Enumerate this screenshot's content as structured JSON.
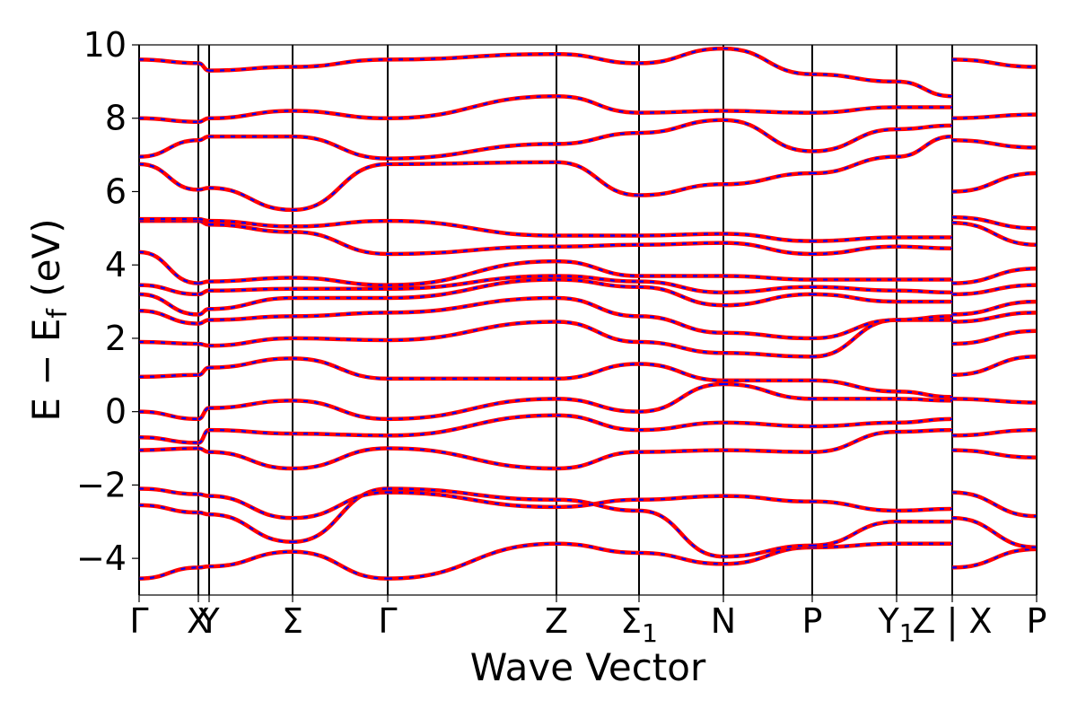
{
  "chart_data": {
    "type": "line",
    "xlabel": "Wave Vector",
    "ylabel": "E − E",
    "ylabel_subscript": "f",
    "ylabel_unit": "(eV)",
    "ylim": [
      -5,
      10
    ],
    "yticks": [
      {
        "value": -4,
        "label": "−4"
      },
      {
        "value": -2,
        "label": "−2"
      },
      {
        "value": 0,
        "label": "0"
      },
      {
        "value": 2,
        "label": "2"
      },
      {
        "value": 4,
        "label": "4"
      },
      {
        "value": 6,
        "label": "6"
      },
      {
        "value": 8,
        "label": "8"
      },
      {
        "value": 10,
        "label": "10"
      }
    ],
    "xlim": [
      0,
      1
    ],
    "high_symmetry_points": [
      {
        "label": "Γ",
        "x": 0.0
      },
      {
        "label": "X",
        "x": 0.066
      },
      {
        "label": "Y",
        "x": 0.078
      },
      {
        "label": "Σ",
        "x": 0.171
      },
      {
        "label": "Γ",
        "x": 0.277
      },
      {
        "label": "Z",
        "x": 0.465
      },
      {
        "label": "Σ",
        "sub": "1",
        "x": 0.557
      },
      {
        "label": "N",
        "x": 0.651
      },
      {
        "label": "P",
        "x": 0.75
      },
      {
        "label": "Y",
        "sub": "1",
        "x": 0.844
      },
      {
        "label": "Z | X",
        "x": 0.906
      },
      {
        "label": "P",
        "x": 1.0
      }
    ],
    "grid": false,
    "line_style": {
      "base_color": "#ff0000",
      "overlay_color": "#0000ff",
      "overlay_dashed": true
    },
    "bands": [
      {
        "name": "band-1",
        "points": [
          [
            0,
            -4.55
          ],
          [
            0.066,
            -4.25
          ],
          [
            0.078,
            -4.22
          ],
          [
            0.171,
            -3.82
          ],
          [
            0.277,
            -4.55
          ],
          [
            0.465,
            -3.6
          ],
          [
            0.557,
            -3.85
          ],
          [
            0.651,
            -4.15
          ],
          [
            0.75,
            -3.7
          ],
          [
            0.844,
            -3.6
          ],
          [
            0.906,
            -3.6
          ],
          [
            0.906,
            -4.25
          ],
          [
            1.0,
            -3.75
          ]
        ]
      },
      {
        "name": "band-2",
        "points": [
          [
            0,
            -2.55
          ],
          [
            0.066,
            -2.75
          ],
          [
            0.078,
            -2.8
          ],
          [
            0.171,
            -3.55
          ],
          [
            0.277,
            -2.1
          ],
          [
            0.465,
            -2.4
          ],
          [
            0.557,
            -2.7
          ],
          [
            0.651,
            -3.95
          ],
          [
            0.75,
            -3.65
          ],
          [
            0.844,
            -3.0
          ],
          [
            0.906,
            -3.0
          ],
          [
            0.906,
            -2.9
          ],
          [
            1.0,
            -3.7
          ]
        ]
      },
      {
        "name": "band-3",
        "points": [
          [
            0,
            -2.1
          ],
          [
            0.066,
            -2.25
          ],
          [
            0.078,
            -2.3
          ],
          [
            0.171,
            -2.9
          ],
          [
            0.277,
            -2.2
          ],
          [
            0.465,
            -2.6
          ],
          [
            0.557,
            -2.4
          ],
          [
            0.651,
            -2.3
          ],
          [
            0.75,
            -2.45
          ],
          [
            0.844,
            -2.7
          ],
          [
            0.906,
            -2.65
          ],
          [
            0.906,
            -2.2
          ],
          [
            1.0,
            -2.85
          ]
        ]
      },
      {
        "name": "band-4",
        "points": [
          [
            0,
            -1.05
          ],
          [
            0.066,
            -1.0
          ],
          [
            0.078,
            -1.1
          ],
          [
            0.171,
            -1.55
          ],
          [
            0.277,
            -1.0
          ],
          [
            0.465,
            -1.55
          ],
          [
            0.557,
            -1.1
          ],
          [
            0.651,
            -1.05
          ],
          [
            0.75,
            -1.1
          ],
          [
            0.844,
            -0.55
          ],
          [
            0.906,
            -0.5
          ],
          [
            0.906,
            -1.05
          ],
          [
            1.0,
            -1.25
          ]
        ]
      },
      {
        "name": "band-5",
        "points": [
          [
            0,
            -0.7
          ],
          [
            0.066,
            -0.85
          ],
          [
            0.078,
            -0.5
          ],
          [
            0.171,
            -0.6
          ],
          [
            0.277,
            -0.65
          ],
          [
            0.465,
            -0.1
          ],
          [
            0.557,
            -0.5
          ],
          [
            0.651,
            -0.3
          ],
          [
            0.75,
            -0.4
          ],
          [
            0.844,
            -0.3
          ],
          [
            0.906,
            -0.2
          ],
          [
            0.906,
            -0.65
          ],
          [
            1.0,
            -0.5
          ]
        ]
      },
      {
        "name": "band-6",
        "points": [
          [
            0,
            0.0
          ],
          [
            0.066,
            -0.2
          ],
          [
            0.078,
            0.1
          ],
          [
            0.171,
            0.3
          ],
          [
            0.277,
            -0.2
          ],
          [
            0.465,
            0.35
          ],
          [
            0.557,
            0.0
          ],
          [
            0.651,
            0.75
          ],
          [
            0.75,
            0.35
          ],
          [
            0.844,
            0.35
          ],
          [
            0.906,
            0.3
          ],
          [
            0.906,
            0.35
          ],
          [
            1.0,
            0.25
          ]
        ]
      },
      {
        "name": "band-7",
        "points": [
          [
            0,
            0.95
          ],
          [
            0.066,
            1.0
          ],
          [
            0.078,
            1.2
          ],
          [
            0.171,
            1.45
          ],
          [
            0.277,
            0.9
          ],
          [
            0.465,
            0.9
          ],
          [
            0.557,
            1.3
          ],
          [
            0.651,
            0.85
          ],
          [
            0.75,
            0.85
          ],
          [
            0.844,
            0.55
          ],
          [
            0.906,
            0.4
          ],
          [
            0.906,
            1.0
          ],
          [
            1.0,
            1.5
          ]
        ]
      },
      {
        "name": "band-8",
        "points": [
          [
            0,
            1.9
          ],
          [
            0.066,
            1.85
          ],
          [
            0.078,
            1.8
          ],
          [
            0.171,
            2.0
          ],
          [
            0.277,
            1.95
          ],
          [
            0.465,
            2.45
          ],
          [
            0.557,
            1.9
          ],
          [
            0.651,
            1.6
          ],
          [
            0.75,
            1.5
          ],
          [
            0.844,
            2.5
          ],
          [
            0.906,
            2.5
          ],
          [
            0.906,
            1.85
          ],
          [
            1.0,
            2.2
          ]
        ]
      },
      {
        "name": "band-9",
        "points": [
          [
            0,
            2.75
          ],
          [
            0.066,
            2.4
          ],
          [
            0.078,
            2.5
          ],
          [
            0.171,
            2.6
          ],
          [
            0.277,
            2.7
          ],
          [
            0.465,
            3.1
          ],
          [
            0.557,
            2.6
          ],
          [
            0.651,
            2.15
          ],
          [
            0.75,
            2.0
          ],
          [
            0.844,
            2.5
          ],
          [
            0.906,
            2.6
          ],
          [
            0.906,
            2.45
          ],
          [
            1.0,
            2.7
          ]
        ]
      },
      {
        "name": "band-10",
        "points": [
          [
            0,
            3.2
          ],
          [
            0.066,
            2.65
          ],
          [
            0.078,
            2.8
          ],
          [
            0.171,
            3.1
          ],
          [
            0.277,
            3.1
          ],
          [
            0.465,
            3.6
          ],
          [
            0.557,
            3.4
          ],
          [
            0.651,
            2.9
          ],
          [
            0.75,
            3.2
          ],
          [
            0.844,
            3.0
          ],
          [
            0.906,
            3.0
          ],
          [
            0.906,
            2.65
          ],
          [
            1.0,
            3.0
          ]
        ]
      },
      {
        "name": "band-11",
        "points": [
          [
            0,
            3.45
          ],
          [
            0.066,
            3.2
          ],
          [
            0.078,
            3.3
          ],
          [
            0.171,
            3.35
          ],
          [
            0.277,
            3.35
          ],
          [
            0.465,
            3.7
          ],
          [
            0.557,
            3.55
          ],
          [
            0.651,
            3.25
          ],
          [
            0.75,
            3.4
          ],
          [
            0.844,
            3.3
          ],
          [
            0.906,
            3.25
          ],
          [
            0.906,
            3.2
          ],
          [
            1.0,
            3.45
          ]
        ]
      },
      {
        "name": "band-12",
        "points": [
          [
            0,
            4.35
          ],
          [
            0.066,
            3.5
          ],
          [
            0.078,
            3.55
          ],
          [
            0.171,
            3.65
          ],
          [
            0.277,
            3.45
          ],
          [
            0.465,
            4.1
          ],
          [
            0.557,
            3.7
          ],
          [
            0.651,
            3.7
          ],
          [
            0.75,
            3.6
          ],
          [
            0.844,
            3.6
          ],
          [
            0.906,
            3.6
          ],
          [
            0.906,
            3.5
          ],
          [
            1.0,
            3.9
          ]
        ]
      },
      {
        "name": "band-13",
        "points": [
          [
            0,
            5.2
          ],
          [
            0.066,
            5.2
          ],
          [
            0.078,
            5.1
          ],
          [
            0.171,
            4.9
          ],
          [
            0.277,
            4.3
          ],
          [
            0.465,
            4.5
          ],
          [
            0.557,
            4.55
          ],
          [
            0.651,
            4.6
          ],
          [
            0.75,
            4.3
          ],
          [
            0.844,
            4.5
          ],
          [
            0.906,
            4.45
          ],
          [
            0.906,
            5.15
          ],
          [
            1.0,
            4.55
          ]
        ]
      },
      {
        "name": "band-14",
        "points": [
          [
            0,
            5.25
          ],
          [
            0.066,
            5.25
          ],
          [
            0.078,
            5.2
          ],
          [
            0.171,
            5.05
          ],
          [
            0.277,
            5.2
          ],
          [
            0.465,
            4.8
          ],
          [
            0.557,
            4.8
          ],
          [
            0.651,
            4.85
          ],
          [
            0.75,
            4.65
          ],
          [
            0.844,
            4.75
          ],
          [
            0.906,
            4.75
          ],
          [
            0.906,
            5.3
          ],
          [
            1.0,
            5.0
          ]
        ]
      },
      {
        "name": "band-15",
        "points": [
          [
            0,
            6.75
          ],
          [
            0.066,
            6.05
          ],
          [
            0.078,
            6.1
          ],
          [
            0.171,
            5.5
          ],
          [
            0.277,
            6.75
          ],
          [
            0.465,
            6.8
          ],
          [
            0.557,
            5.9
          ],
          [
            0.651,
            6.2
          ],
          [
            0.75,
            6.5
          ],
          [
            0.844,
            6.95
          ],
          [
            0.906,
            7.5
          ],
          [
            0.906,
            6.0
          ],
          [
            1.0,
            6.5
          ]
        ]
      },
      {
        "name": "band-16",
        "points": [
          [
            0,
            6.95
          ],
          [
            0.066,
            7.4
          ],
          [
            0.078,
            7.5
          ],
          [
            0.171,
            7.5
          ],
          [
            0.277,
            6.9
          ],
          [
            0.465,
            7.3
          ],
          [
            0.557,
            7.6
          ],
          [
            0.651,
            7.95
          ],
          [
            0.75,
            7.1
          ],
          [
            0.844,
            7.7
          ],
          [
            0.906,
            7.8
          ],
          [
            0.906,
            7.4
          ],
          [
            1.0,
            7.2
          ]
        ]
      },
      {
        "name": "band-17",
        "points": [
          [
            0,
            8.0
          ],
          [
            0.066,
            7.9
          ],
          [
            0.078,
            8.0
          ],
          [
            0.171,
            8.2
          ],
          [
            0.277,
            8.0
          ],
          [
            0.465,
            8.6
          ],
          [
            0.557,
            8.15
          ],
          [
            0.651,
            8.2
          ],
          [
            0.75,
            8.15
          ],
          [
            0.844,
            8.3
          ],
          [
            0.906,
            8.3
          ],
          [
            0.906,
            8.0
          ],
          [
            1.0,
            8.1
          ]
        ]
      },
      {
        "name": "band-18",
        "points": [
          [
            0,
            9.6
          ],
          [
            0.066,
            9.5
          ],
          [
            0.078,
            9.3
          ],
          [
            0.171,
            9.4
          ],
          [
            0.277,
            9.6
          ],
          [
            0.465,
            9.75
          ],
          [
            0.557,
            9.5
          ],
          [
            0.651,
            9.9
          ],
          [
            0.75,
            9.2
          ],
          [
            0.844,
            9.0
          ],
          [
            0.906,
            8.6
          ],
          [
            0.906,
            9.6
          ],
          [
            1.0,
            9.4
          ]
        ]
      }
    ]
  }
}
